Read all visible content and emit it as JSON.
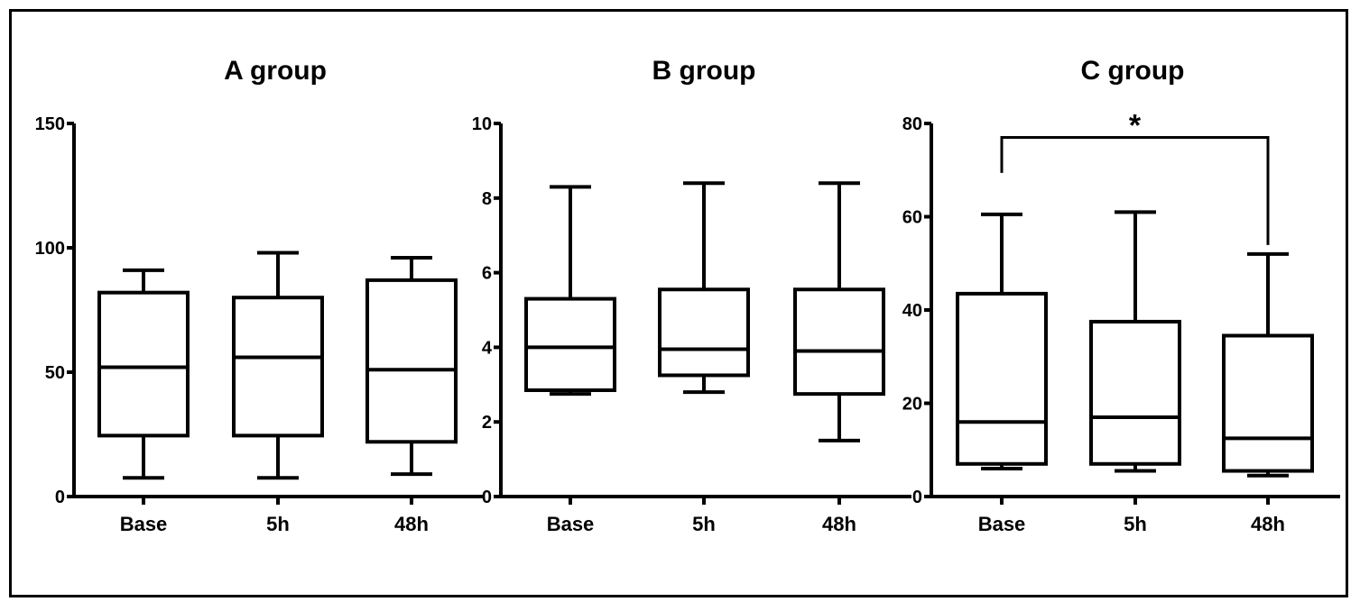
{
  "chart_data": [
    {
      "type": "box",
      "title": "A group",
      "categories": [
        "Base",
        "5h",
        "48h"
      ],
      "ylim": [
        0,
        150
      ],
      "yticks": [
        0,
        50,
        100,
        150
      ],
      "boxes": [
        {
          "min": 7.5,
          "q1": 24.5,
          "median": 52,
          "q3": 82,
          "max": 91
        },
        {
          "min": 7.5,
          "q1": 24.5,
          "median": 56,
          "q3": 80,
          "max": 98
        },
        {
          "min": 9,
          "q1": 22,
          "median": 51,
          "q3": 87,
          "max": 96
        }
      ]
    },
    {
      "type": "box",
      "title": "B group",
      "categories": [
        "Base",
        "5h",
        "48h"
      ],
      "ylim": [
        0,
        10
      ],
      "yticks": [
        0,
        2,
        4,
        6,
        8,
        10
      ],
      "boxes": [
        {
          "min": 2.75,
          "q1": 2.85,
          "median": 4.0,
          "q3": 5.3,
          "max": 8.3
        },
        {
          "min": 2.8,
          "q1": 3.25,
          "median": 3.95,
          "q3": 5.55,
          "max": 8.4
        },
        {
          "min": 1.5,
          "q1": 2.75,
          "median": 3.9,
          "q3": 5.55,
          "max": 8.4
        }
      ]
    },
    {
      "type": "box",
      "title": "C group",
      "categories": [
        "Base",
        "5h",
        "48h"
      ],
      "ylim": [
        0,
        80
      ],
      "yticks": [
        0,
        20,
        40,
        60,
        80
      ],
      "boxes": [
        {
          "min": 6,
          "q1": 7,
          "median": 16,
          "q3": 43.5,
          "max": 60.5
        },
        {
          "min": 5.5,
          "q1": 7,
          "median": 17,
          "q3": 37.5,
          "max": 61
        },
        {
          "min": 4.5,
          "q1": 5.5,
          "median": 12.5,
          "q3": 34.5,
          "max": 52
        }
      ],
      "significance": {
        "from": 0,
        "to": 2,
        "y": 77,
        "label": "*"
      }
    }
  ]
}
